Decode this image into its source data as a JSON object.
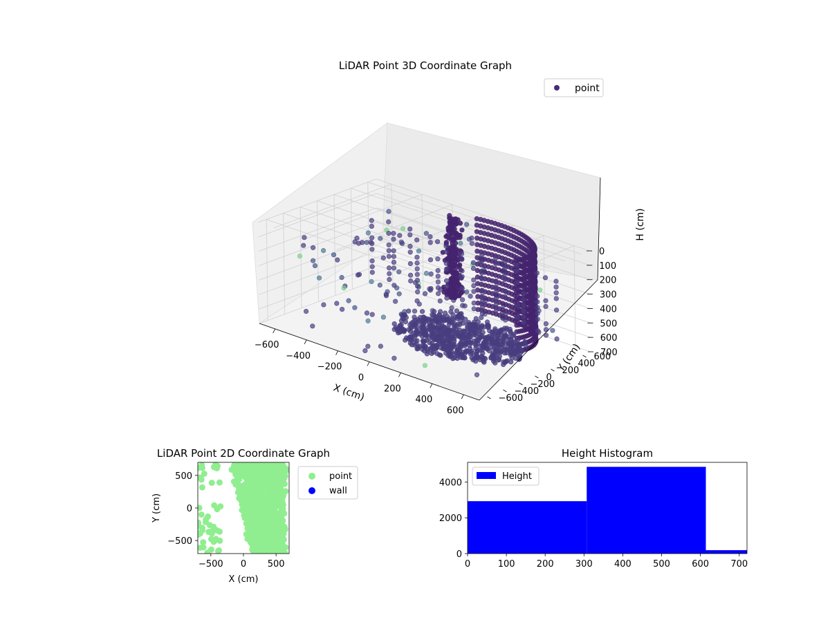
{
  "chart_data": [
    {
      "type": "scatter",
      "title": "LiDAR Point 3D Coordinate Graph",
      "xlabel": "X (cm)",
      "ylabel": "Y (cm)",
      "zlabel": "H (cm)",
      "xlim": [
        -700,
        700
      ],
      "ylim": [
        -700,
        700
      ],
      "zlim": [
        700,
        0
      ],
      "x_ticks": [
        "−600",
        "−400",
        "−200",
        "0",
        "200",
        "400",
        "600"
      ],
      "y_ticks": [
        "−600",
        "−400",
        "−200",
        "0",
        "200",
        "400",
        "600"
      ],
      "z_ticks": [
        "0",
        "100",
        "200",
        "300",
        "400",
        "500",
        "600",
        "700"
      ],
      "legend": [
        "point"
      ],
      "legend_position": "top-right",
      "grid": true,
      "colormap": "viridis",
      "marker_color": "#472c7a"
    },
    {
      "type": "scatter",
      "title": "LiDAR Point 2D Coordinate Graph",
      "xlabel": "X (cm)",
      "ylabel": "Y (cm)",
      "xlim": [
        -700,
        700
      ],
      "ylim": [
        -700,
        700
      ],
      "x_ticks": [
        "−500",
        "0",
        "500"
      ],
      "y_ticks": [
        "500",
        "0",
        "−500"
      ],
      "series": [
        {
          "name": "point",
          "color": "#90ee90"
        },
        {
          "name": "wall",
          "color": "#0000ff"
        }
      ],
      "legend_position": "outside-right"
    },
    {
      "type": "bar",
      "title": "Height Histogram",
      "series": [
        {
          "name": "Height",
          "color": "#0000ff"
        }
      ],
      "bins": [
        {
          "from": 0,
          "to": 307,
          "count": 2930
        },
        {
          "from": 307,
          "to": 614,
          "count": 4850
        },
        {
          "from": 614,
          "to": 720,
          "count": 190
        }
      ],
      "xlim": [
        0,
        720
      ],
      "ylim": [
        0,
        5100
      ],
      "x_ticks": [
        "0",
        "100",
        "200",
        "300",
        "400",
        "500",
        "600",
        "700"
      ],
      "y_ticks": [
        "0",
        "2000",
        "4000"
      ],
      "legend_position": "top-left"
    }
  ]
}
